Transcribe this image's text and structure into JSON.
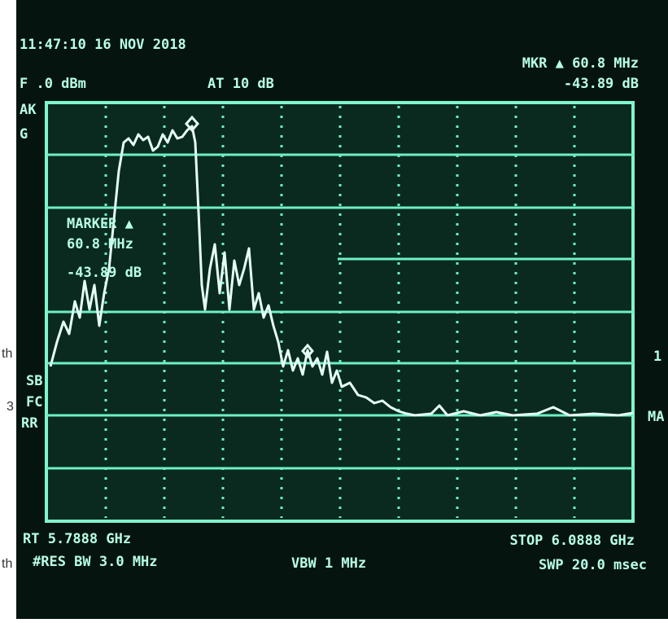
{
  "screen": {
    "top_left": {
      "time_date": "11:47:10  16 NOV 2018",
      "ref": "F .0 dBm",
      "atten": "AT 10 dB",
      "peak": "AK",
      "log": "G"
    },
    "top_right": {
      "marker": "MKR ▲ 60.8 MHz",
      "marker_level": "-43.89 dB"
    },
    "marker_box": {
      "title": "MARKER ▲",
      "freq": "60.8 MHz",
      "level": "-43.89 dB"
    },
    "left_edge": [
      "SB",
      "FC",
      "RR"
    ],
    "right_edge": [
      "1",
      "MA"
    ],
    "bottom": {
      "start": "RT 5.7888 GHz",
      "stop": "STOP 6.0888 GHz",
      "rbw": "#RES BW 3.0 MHz",
      "vbw": "VBW 1 MHz",
      "sweep": "SWP 20.0 msec"
    }
  },
  "page_fragments": [
    "th",
    "3",
    "th"
  ]
}
